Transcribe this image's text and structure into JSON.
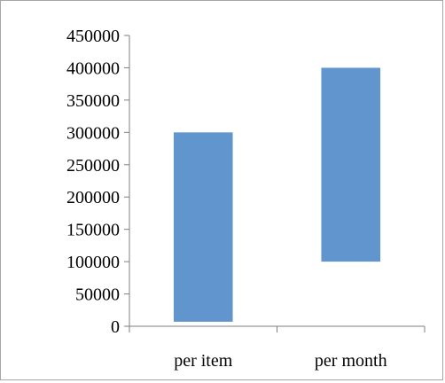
{
  "chart_data": {
    "type": "bar",
    "subtype": "floating-range",
    "title": "",
    "xlabel": "",
    "ylabel": "",
    "categories": [
      "per item",
      "per month"
    ],
    "series": [
      {
        "ranges": [
          [
            7000,
            300000
          ],
          [
            100000,
            400000
          ]
        ]
      }
    ],
    "ylim": [
      0,
      450000
    ],
    "yticks": [
      "0",
      "50000",
      "100000",
      "150000",
      "200000",
      "250000",
      "300000",
      "350000",
      "400000",
      "450000"
    ],
    "grid": false,
    "legend": "none",
    "colors": {
      "bar": "#6096cd",
      "axis": "#7f7f7f",
      "text": "#000000",
      "border": "#a6a6a6"
    }
  }
}
